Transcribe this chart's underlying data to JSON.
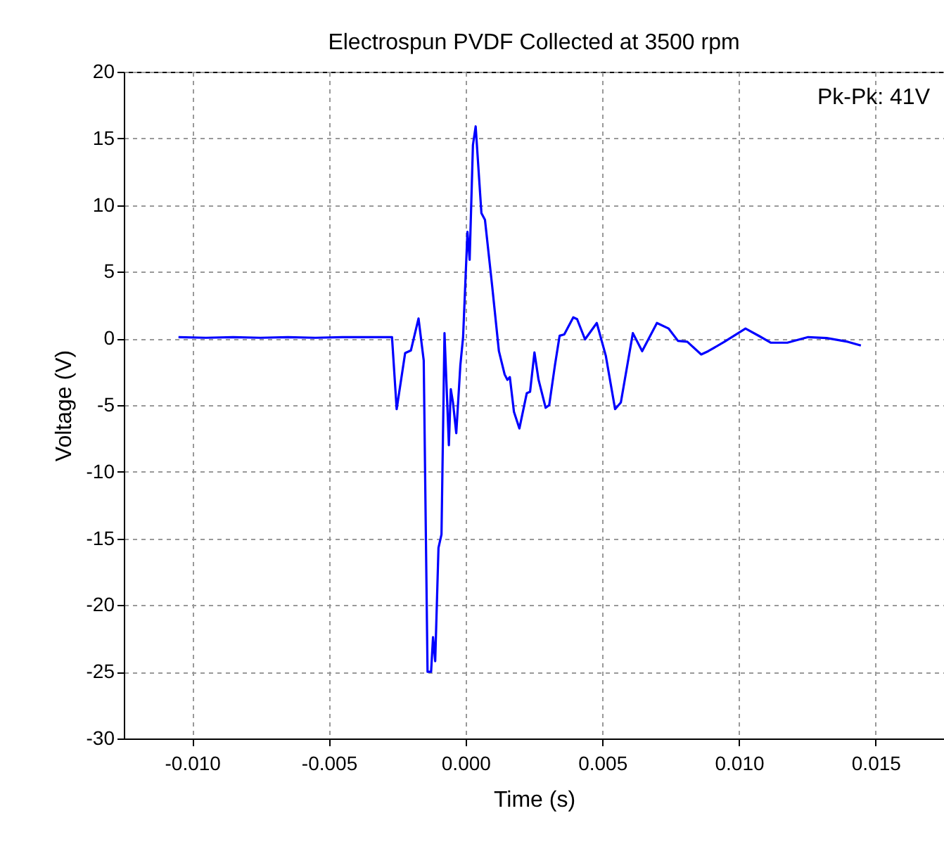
{
  "chart_data": {
    "type": "line",
    "title": "Electrospun PVDF Collected at 3500 rpm",
    "xlabel": "Time (s)",
    "ylabel": "Voltage (V)",
    "annotations": [
      "Pk-Pk: 41V"
    ],
    "xlim": [
      -0.0125,
      0.0175
    ],
    "xticks": [
      {
        "value": -0.01,
        "label": "-0.010"
      },
      {
        "value": -0.005,
        "label": "-0.005"
      },
      {
        "value": 0,
        "label": "0.000"
      },
      {
        "value": 0.005,
        "label": "0.005"
      },
      {
        "value": 0.01,
        "label": "0.010"
      },
      {
        "value": 0.015,
        "label": "0.015"
      }
    ],
    "ylim": [
      -30,
      20
    ],
    "yticks": [
      -30,
      -25,
      -20,
      -15,
      -10,
      -5,
      0,
      5,
      10,
      15,
      20
    ],
    "grid": true,
    "marker": "none",
    "line_style": "solid",
    "series": [
      {
        "color": "#0000ff",
        "x": [
          -0.0105,
          -0.0095,
          -0.0085,
          -0.0075,
          -0.0065,
          -0.0055,
          -0.0045,
          -0.0035,
          -0.00269,
          -0.00252,
          -0.00221,
          -0.002,
          -0.00172,
          -0.00153,
          -0.00139,
          -0.00126,
          -0.00119,
          -0.00111,
          -0.00099,
          -0.00088,
          -0.00077,
          -0.00061,
          -0.00054,
          -0.00046,
          -0.00034,
          -0.00019,
          -9e-05,
          7e-05,
          0.00015,
          0.00027,
          0.00037,
          0.00058,
          0.00071,
          0.00097,
          0.00122,
          0.00143,
          0.00153,
          0.00162,
          0.00177,
          0.00197,
          0.00224,
          0.00236,
          0.00252,
          0.00267,
          0.00293,
          0.00306,
          0.00327,
          0.00344,
          0.00361,
          0.00394,
          0.00408,
          0.00437,
          0.0048,
          0.00513,
          0.00547,
          0.00568,
          0.00612,
          0.00646,
          0.007,
          0.00743,
          0.00777,
          0.00811,
          0.00862,
          0.00888,
          0.00947,
          0.01024,
          0.01075,
          0.01117,
          0.01177,
          0.01253,
          0.01321,
          0.01398,
          0.01446
        ],
        "values": [
          0.1,
          0.05,
          0.1,
          0.05,
          0.1,
          0.05,
          0.1,
          0.1,
          0.1,
          -5.3,
          -1.1,
          -0.9,
          1.5,
          -1.65,
          -25,
          -25,
          -22.4,
          -24.2,
          -15.7,
          -14.7,
          0.4,
          -8,
          -3.8,
          -4.8,
          -7.1,
          -2,
          0.1,
          8,
          5.9,
          14.5,
          15.9,
          9.4,
          8.9,
          4,
          -0.95,
          -2.7,
          -3.1,
          -2.9,
          -5.5,
          -6.75,
          -4.1,
          -4,
          -1.05,
          -3.1,
          -5.2,
          -5,
          -2,
          0.2,
          0.3,
          1.58,
          1.45,
          -0.07,
          1.16,
          -1.3,
          -5.3,
          -4.8,
          0.4,
          -0.95,
          1.16,
          0.74,
          -0.18,
          -0.25,
          -1.2,
          -0.95,
          -0.25,
          0.74,
          0.17,
          -0.32,
          -0.32,
          0.1,
          0.03,
          -0.25,
          -0.53
        ]
      }
    ]
  }
}
